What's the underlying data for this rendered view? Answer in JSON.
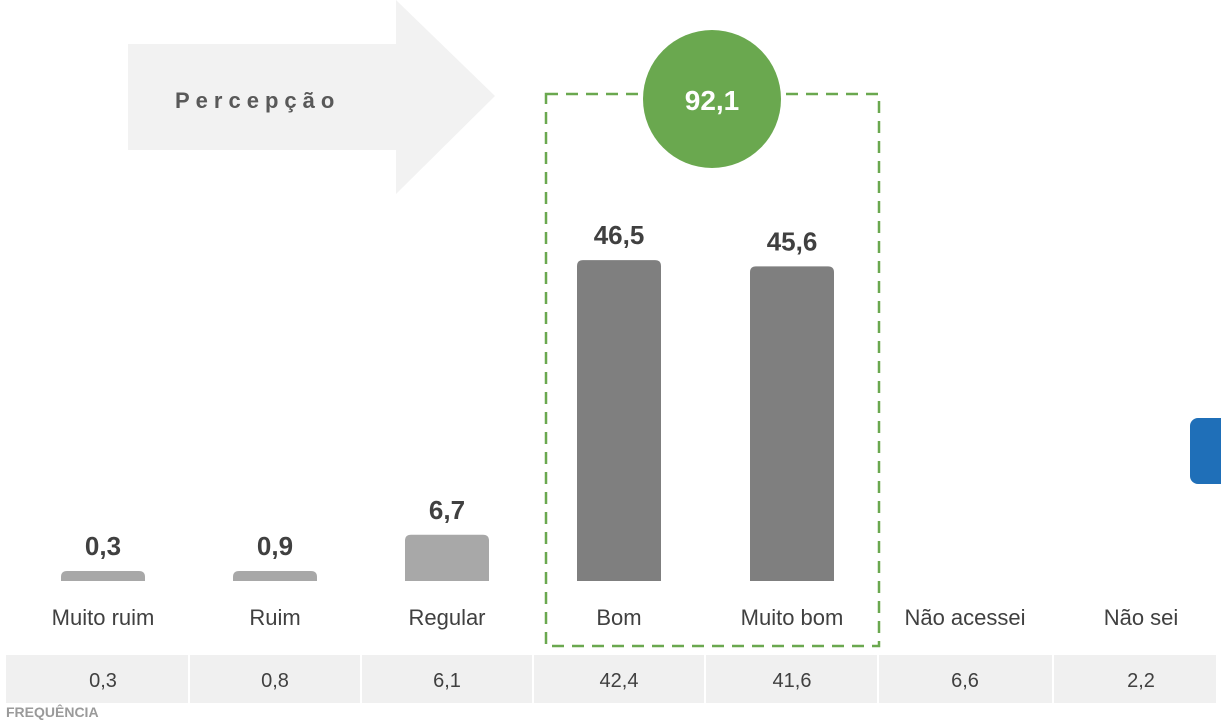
{
  "title_fragment": "",
  "perception_label": "Percepção",
  "footer_label": "FREQUÊNCIA",
  "highlight": {
    "value_label": "92,1",
    "circle_color": "#6aa84f",
    "border_color": "#6aa84f"
  },
  "colors": {
    "bar_light": "#a8a8a8",
    "bar_dark": "#7f7f7f",
    "row_bg": "#f0f0f0",
    "text": "#404040",
    "tab": "#1f6fb8"
  },
  "chart_data": {
    "type": "bar",
    "categories": [
      "Muito ruim",
      "Ruim",
      "Regular",
      "Bom",
      "Muito bom",
      "Não acessei",
      "Não sei"
    ],
    "values": [
      0.3,
      0.9,
      6.7,
      46.5,
      45.6,
      null,
      null
    ],
    "value_labels": [
      "0,3",
      "0,9",
      "6,7",
      "46,5",
      "45,6",
      "",
      ""
    ],
    "highlighted_categories": [
      "Bom",
      "Muito bom"
    ],
    "highlight_total": 92.1,
    "frequency_row": [
      "0,3",
      "0,8",
      "6,1",
      "42,4",
      "41,6",
      "6,6",
      "2,2"
    ],
    "ylim": [
      0,
      50
    ],
    "grid": false,
    "legend": "none"
  }
}
